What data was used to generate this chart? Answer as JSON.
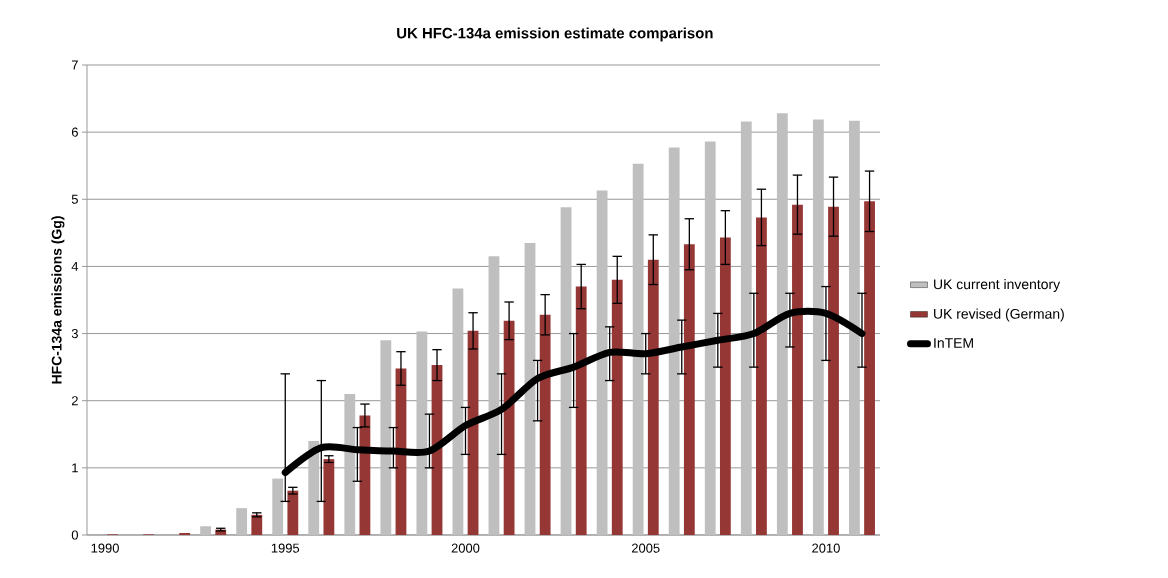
{
  "chart_data": {
    "type": "bar",
    "title": "UK HFC-134a emission estimate comparison",
    "ylabel": "HFC-134a emissions (Gg)",
    "categories": [
      "1990",
      null,
      null,
      null,
      null,
      "1995",
      null,
      null,
      null,
      null,
      "2000",
      null,
      null,
      null,
      null,
      "2005",
      null,
      null,
      null,
      null,
      "2010",
      null
    ],
    "ylim": [
      0,
      7
    ],
    "yticks": [
      0,
      1,
      2,
      3,
      4,
      5,
      6,
      7
    ],
    "grid": "y",
    "legend": "right",
    "series": [
      {
        "name": "UK current inventory",
        "color": "#bfbfbf",
        "values": [
          null,
          null,
          null,
          0.13,
          0.4,
          0.84,
          1.4,
          2.1,
          2.9,
          3.03,
          3.67,
          4.15,
          4.35,
          4.88,
          5.13,
          5.53,
          5.77,
          5.86,
          6.16,
          6.28,
          6.19,
          6.17
        ]
      },
      {
        "name": "UK revised (German)",
        "color": "#953735",
        "values": [
          0.01,
          0.01,
          0.03,
          0.08,
          0.3,
          0.66,
          1.13,
          1.78,
          2.48,
          2.53,
          3.04,
          3.19,
          3.28,
          3.7,
          3.8,
          4.1,
          4.33,
          4.43,
          4.73,
          4.92,
          4.89,
          4.97
        ],
        "errors": [
          null,
          null,
          null,
          0.02,
          0.03,
          0.05,
          0.05,
          0.17,
          0.25,
          0.23,
          0.27,
          0.28,
          0.3,
          0.33,
          0.35,
          0.37,
          0.38,
          0.4,
          0.42,
          0.44,
          0.44,
          0.45
        ]
      },
      {
        "name": "InTEM",
        "type": "line",
        "color": "#000000",
        "values": [
          null,
          null,
          null,
          null,
          null,
          0.93,
          1.3,
          1.27,
          1.25,
          1.25,
          1.63,
          1.87,
          2.33,
          2.5,
          2.72,
          2.7,
          2.8,
          2.9,
          3.0,
          3.3,
          3.3,
          3.0
        ],
        "errors": [
          null,
          null,
          null,
          null,
          null,
          [
            0.5,
            2.4
          ],
          [
            0.5,
            2.3
          ],
          [
            0.8,
            1.6
          ],
          [
            1.0,
            1.6
          ],
          [
            1.0,
            1.8
          ],
          [
            1.2,
            1.9
          ],
          [
            1.2,
            2.4
          ],
          [
            1.7,
            2.6
          ],
          [
            1.9,
            3.0
          ],
          [
            2.3,
            3.1
          ],
          [
            2.4,
            3.0
          ],
          [
            2.4,
            3.2
          ],
          [
            2.5,
            3.3
          ],
          [
            2.5,
            3.6
          ],
          [
            2.8,
            3.6
          ],
          [
            2.6,
            3.7
          ],
          [
            2.5,
            3.6
          ]
        ]
      }
    ]
  }
}
